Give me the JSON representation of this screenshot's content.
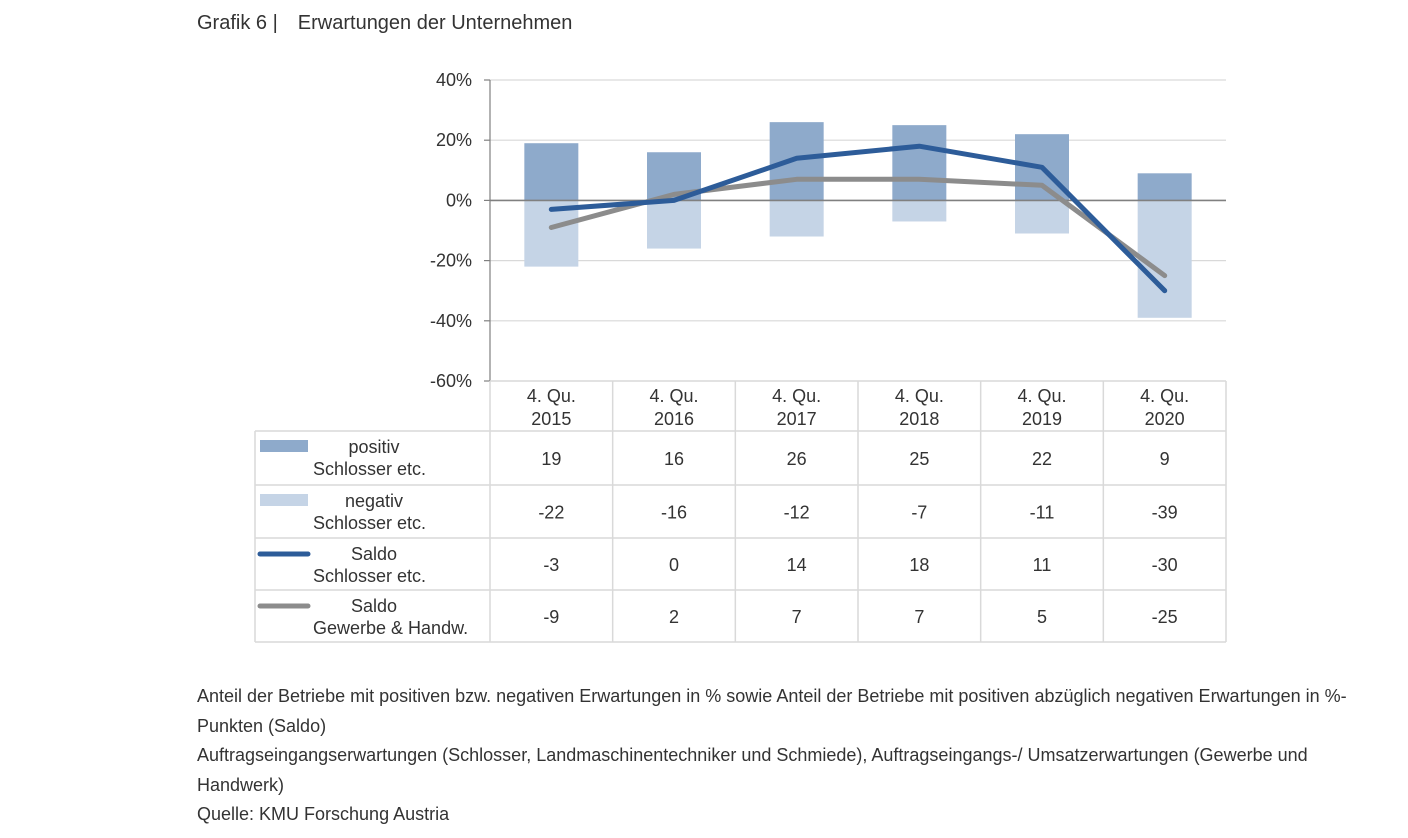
{
  "figure": {
    "number": "Grafik 6 |",
    "title": "Erwartungen der Unternehmen"
  },
  "chart_data": {
    "type": "bar",
    "categories": [
      "4. Qu. 2015",
      "4. Qu. 2016",
      "4. Qu. 2017",
      "4. Qu. 2018",
      "4. Qu. 2019",
      "4. Qu. 2020"
    ],
    "category_lines": [
      [
        "4. Qu.",
        "2015"
      ],
      [
        "4. Qu.",
        "2016"
      ],
      [
        "4. Qu.",
        "2017"
      ],
      [
        "4. Qu.",
        "2018"
      ],
      [
        "4. Qu.",
        "2019"
      ],
      [
        "4. Qu.",
        "2020"
      ]
    ],
    "ylim": [
      -60,
      40
    ],
    "yticks": [
      40,
      20,
      0,
      -20,
      -40,
      -60
    ],
    "ytick_labels": [
      "40%",
      "20%",
      "0%",
      "-20%",
      "-40%",
      "-60%"
    ],
    "grid": true,
    "legend": "data-table",
    "series": [
      {
        "key": "pos",
        "type": "bar",
        "name_lines": [
          "positiv",
          "Schlosser etc."
        ],
        "color": "#8eaacb",
        "values": [
          19,
          16,
          26,
          25,
          22,
          9
        ],
        "labels": [
          "19",
          "16",
          "26",
          "25",
          "22",
          "9"
        ]
      },
      {
        "key": "neg",
        "type": "bar",
        "name_lines": [
          "negativ",
          "Schlosser etc."
        ],
        "color": "#c5d4e6",
        "values": [
          -22,
          -16,
          -12,
          -7,
          -11,
          -39
        ],
        "labels": [
          "-22",
          "-16",
          "-12",
          "-7",
          "-11",
          "-39"
        ]
      },
      {
        "key": "saldo",
        "type": "line",
        "name_lines": [
          "Saldo",
          "Schlosser etc."
        ],
        "color": "#2d5c99",
        "values": [
          -3,
          0,
          14,
          18,
          11,
          -30
        ],
        "labels": [
          "-3",
          "0",
          "14",
          "18",
          "11",
          "-30"
        ]
      },
      {
        "key": "gew",
        "type": "line",
        "name_lines": [
          "Saldo",
          "Gewerbe & Handw."
        ],
        "color": "#8c8c8c",
        "values": [
          -9,
          2,
          7,
          7,
          5,
          -25
        ],
        "labels": [
          "-9",
          "2",
          "7",
          "7",
          "5",
          "-25"
        ]
      }
    ],
    "colors": {
      "grid": "#d9d9d9",
      "zero_line": "#808080",
      "axis": "#808080",
      "table_border": "#d9d9d9"
    }
  },
  "notes": [
    "Anteil der Betriebe mit positiven bzw. negativen Erwartungen in % sowie Anteil der Betriebe mit positiven abzüglich negativen Erwartungen in %-Punkten (Saldo)",
    "Auftragseingangserwartungen (Schlosser, Landmaschinentechniker und Schmiede), Auftragseingangs-/ Umsatzerwartungen (Gewerbe und Handwerk)",
    "Quelle: KMU Forschung Austria"
  ]
}
